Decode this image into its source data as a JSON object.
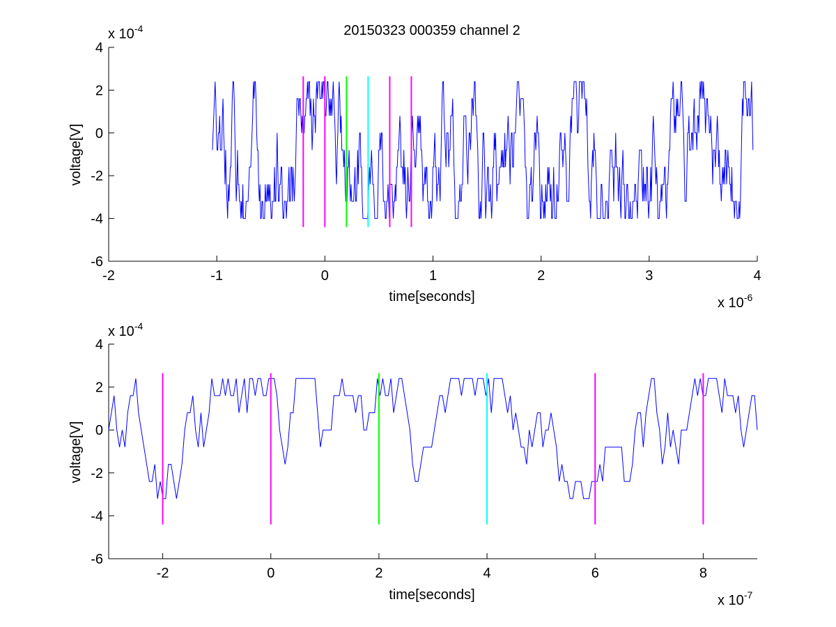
{
  "chart_data": [
    {
      "type": "line",
      "title": "20150323 000359 channel 2",
      "xlabel": "time[seconds]",
      "ylabel": "voltage[V]",
      "xlim": [
        -2,
        4
      ],
      "ylim": [
        -6,
        4
      ],
      "xticks": [
        "-2",
        "-1",
        "0",
        "1",
        "2",
        "3",
        "4"
      ],
      "yticks": [
        "4",
        "2",
        "0",
        "-2",
        "-4",
        "-6"
      ],
      "x_exponent": "x 10",
      "x_exponent_power": "-6",
      "y_exponent": "x 10",
      "y_exponent_power": "-4",
      "line_color": "#0000ff",
      "grid": false,
      "signal": {
        "x_start": -1.04,
        "x_end": 3.96,
        "levels": [
          -4,
          -3.2,
          -2.4,
          -1.6,
          -0.8,
          0,
          0.8,
          1.6,
          2.4
        ]
      },
      "vertical_markers": [
        {
          "x": -0.2,
          "y_range": [
            -4.4,
            2.65
          ],
          "color": "#ff00ff"
        },
        {
          "x": 0,
          "y_range": [
            -4.4,
            2.65
          ],
          "color": "#ff00ff"
        },
        {
          "x": 0.2,
          "y_range": [
            -4.4,
            2.65
          ],
          "color": "#00ff00"
        },
        {
          "x": 0.4,
          "y_range": [
            -4.4,
            2.65
          ],
          "color": "#00ffff"
        },
        {
          "x": 0.6,
          "y_range": [
            -4.4,
            2.65
          ],
          "color": "#ff00ff"
        },
        {
          "x": 0.8,
          "y_range": [
            -4.4,
            2.65
          ],
          "color": "#ff00ff"
        }
      ]
    },
    {
      "type": "line",
      "title": "",
      "xlabel": "time[seconds]",
      "ylabel": "voltage[V]",
      "xlim": [
        -3,
        9
      ],
      "ylim": [
        -6,
        4
      ],
      "xticks": [
        "-2",
        "0",
        "2",
        "4",
        "6",
        "8"
      ],
      "yticks": [
        "4",
        "2",
        "0",
        "-2",
        "-4",
        "-6"
      ],
      "x_exponent": "x 10",
      "x_exponent_power": "-7",
      "y_exponent": "x 10",
      "y_exponent_power": "-4",
      "line_color": "#0000ff",
      "grid": false,
      "signal": {
        "x_start": -3,
        "x_end": 9,
        "levels": [
          -3.2,
          -2.4,
          -1.6,
          -0.8,
          0,
          0.8,
          1.6,
          2.4
        ]
      },
      "vertical_markers": [
        {
          "x": -2,
          "y_range": [
            -4.4,
            2.65
          ],
          "color": "#ff00ff"
        },
        {
          "x": 0,
          "y_range": [
            -4.4,
            2.65
          ],
          "color": "#ff00ff"
        },
        {
          "x": 2,
          "y_range": [
            -4.4,
            2.65
          ],
          "color": "#00ff00"
        },
        {
          "x": 4,
          "y_range": [
            -4.4,
            2.65
          ],
          "color": "#00ffff"
        },
        {
          "x": 6,
          "y_range": [
            -4.4,
            2.65
          ],
          "color": "#ff00ff"
        },
        {
          "x": 8,
          "y_range": [
            -4.4,
            2.65
          ],
          "color": "#ff00ff"
        }
      ]
    }
  ]
}
